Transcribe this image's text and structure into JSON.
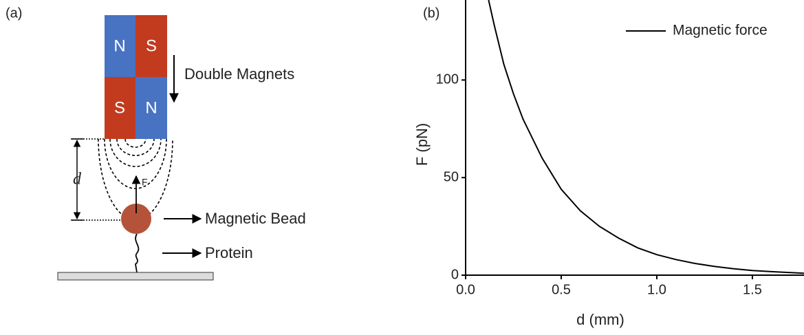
{
  "panel_a": {
    "label": "(a)",
    "magnets": {
      "top_left": "N",
      "top_right": "S",
      "bottom_left": "S",
      "bottom_right": "N"
    },
    "magnets_label": "Double Magnets",
    "distance_label": "d",
    "force_label": "F",
    "bead_label": "Magnetic Bead",
    "protein_label": "Protein"
  },
  "chart_data": {
    "type": "line",
    "panel_label": "(b)",
    "x": [
      0.12,
      0.15,
      0.2,
      0.25,
      0.3,
      0.4,
      0.5,
      0.6,
      0.7,
      0.8,
      0.9,
      1.0,
      1.1,
      1.2,
      1.3,
      1.4,
      1.5,
      1.6,
      1.7,
      1.77
    ],
    "series": [
      {
        "name": "Magnetic force",
        "color": "#000000",
        "values": [
          141,
          128,
          108,
          93,
          80,
          60,
          44,
          33,
          25,
          19,
          14,
          10.5,
          8,
          6,
          4.5,
          3.3,
          2.4,
          1.8,
          1.3,
          1.0
        ]
      }
    ],
    "xlabel": "d (mm)",
    "ylabel": "F (pN)",
    "xlim": [
      0,
      1.77
    ],
    "ylim": [
      0,
      141
    ],
    "xticks": [
      {
        "value": 0,
        "label": "0.0"
      },
      0.5,
      {
        "value": 1,
        "label": "1.0"
      },
      1.5
    ],
    "yticks": [
      0,
      50,
      100
    ],
    "legend": "upper right"
  }
}
